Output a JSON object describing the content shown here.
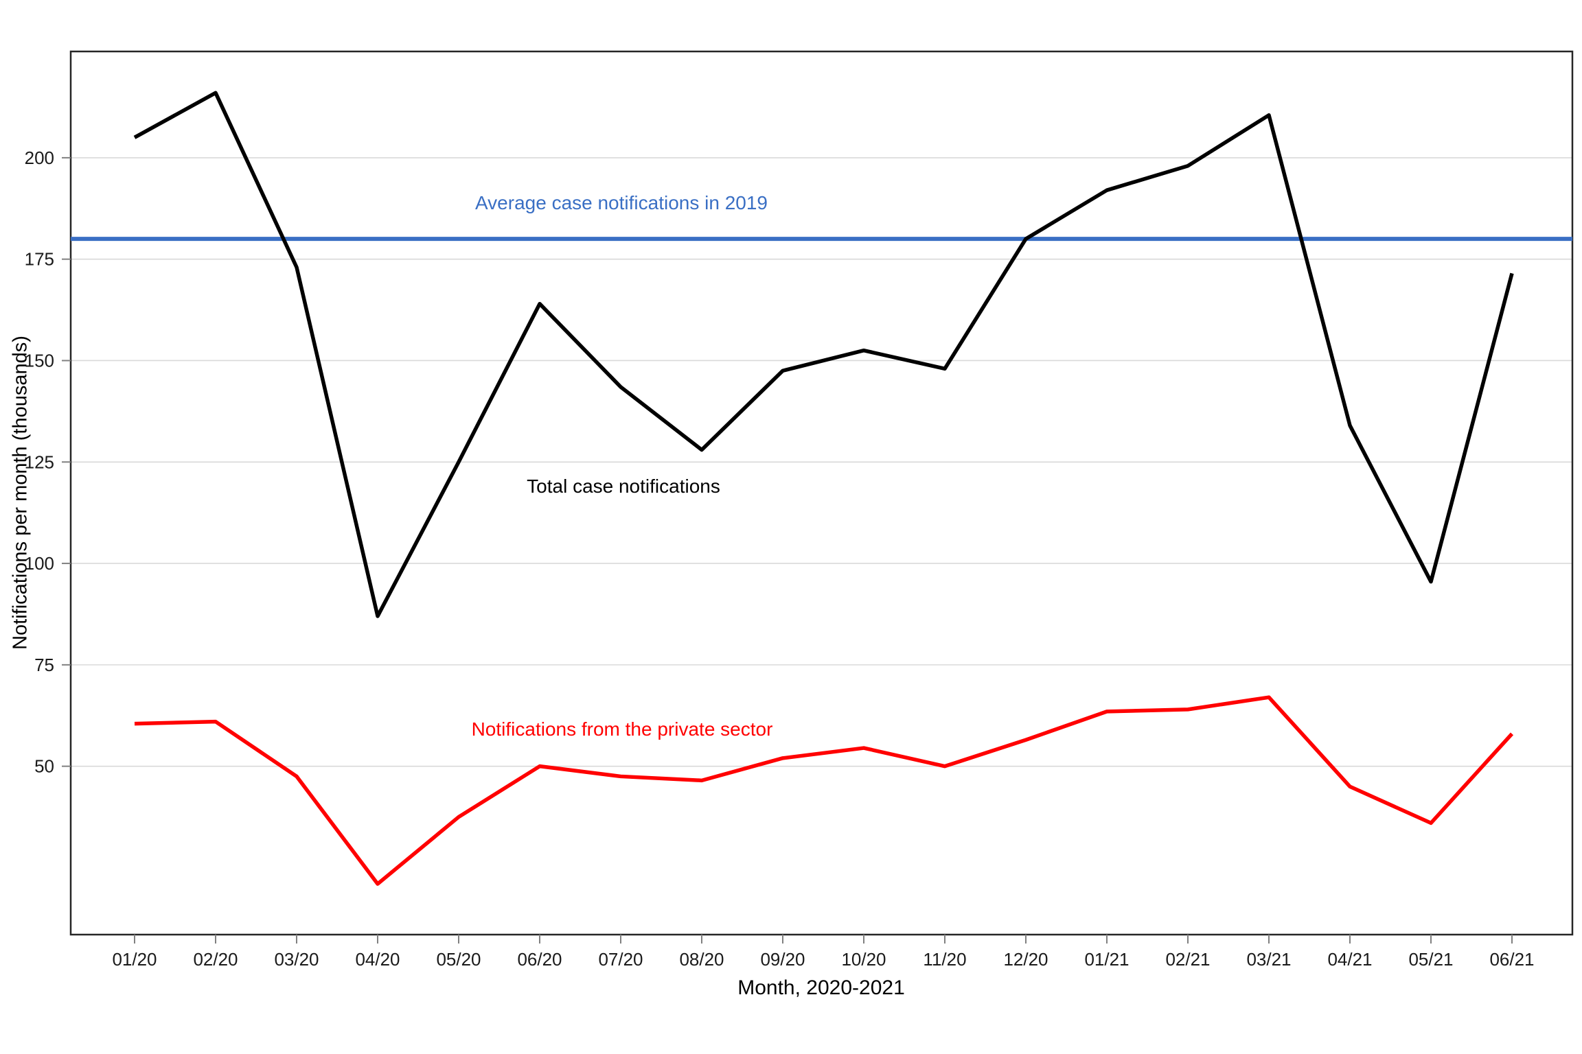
{
  "chart_data": {
    "type": "line",
    "title": "",
    "xlabel": "Month, 2020-2021",
    "ylabel": "Notifications per month (thousands)",
    "x_categories": [
      "01/20",
      "02/20",
      "03/20",
      "04/20",
      "05/20",
      "06/20",
      "07/20",
      "08/20",
      "09/20",
      "10/20",
      "11/20",
      "12/20",
      "01/21",
      "02/21",
      "03/21",
      "04/21",
      "05/21",
      "06/21"
    ],
    "series": [
      {
        "name": "Total case notifications",
        "color": "#000000",
        "values": [
          205,
          216,
          173,
          87,
          125,
          164,
          143.5,
          128,
          147.5,
          152.5,
          148,
          180,
          192,
          198,
          210.5,
          134,
          95.5,
          171.5
        ]
      },
      {
        "name": "Notifications from the private sector",
        "color": "#FF0000",
        "values": [
          60.5,
          61,
          47.5,
          21,
          37.5,
          50,
          47.5,
          46.5,
          52,
          54.5,
          50,
          56.5,
          63.5,
          64,
          67,
          45,
          36,
          58
        ]
      }
    ],
    "reference_line": {
      "label": "Average case notifications in 2019",
      "value": 180,
      "color": "#3A6FC4"
    },
    "y_ticks": [
      200,
      175,
      150,
      125,
      100,
      75,
      50
    ],
    "ylim": [
      8.5,
      226.2
    ],
    "grid": "horizontal-only",
    "legend": "none (direct line labels)",
    "annotations": [
      {
        "id": "ref-line-label",
        "text": "Average case notifications in 2019",
        "color": "#3A6FC4"
      },
      {
        "id": "total-series-label",
        "text": "Total case notifications",
        "color": "#000000"
      },
      {
        "id": "private-series-label",
        "text": "Notifications from the private sector",
        "color": "#FF0000"
      }
    ],
    "colors": {
      "gridline": "#D9D9D9",
      "plot_border": "#262626",
      "tick": "#808080",
      "tick_label": "#1A1A1A",
      "background": "#FFFFFF"
    }
  }
}
